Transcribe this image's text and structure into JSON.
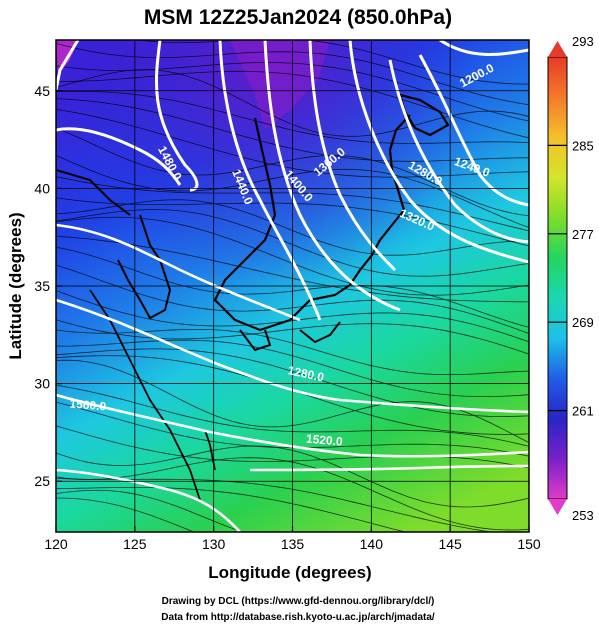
{
  "chart_data": {
    "type": "heatmap",
    "title": "MSM 12Z25Jan2024 (850.0hPa)",
    "xlabel": "Longitude (degrees)",
    "ylabel": "Latitude  (degrees)",
    "xlim": [
      120,
      150
    ],
    "ylim": [
      22.4,
      47.6
    ],
    "xticks": [
      120,
      125,
      130,
      135,
      140,
      145,
      150
    ],
    "yticks": [
      25,
      30,
      35,
      40,
      45
    ],
    "grid": true,
    "colorbar": {
      "min": 253,
      "max": 293,
      "ticks": [
        253,
        261,
        269,
        277,
        285,
        293
      ],
      "colors": [
        "#e03cc8",
        "#7a20c8",
        "#2826c8",
        "#1f5ee6",
        "#1ec0e8",
        "#1ad8b0",
        "#24d460",
        "#7edc2a",
        "#d4e42a",
        "#f4c02a",
        "#f47a2a",
        "#e83a2a"
      ]
    },
    "contours": [
      {
        "label": "1480.0",
        "lon": 127.0,
        "lat": 41.2,
        "rot": 62
      },
      {
        "label": "1440.0",
        "lon": 131.6,
        "lat": 40.0,
        "rot": 68
      },
      {
        "label": "1400.0",
        "lon": 135.2,
        "lat": 40.0,
        "rot": 50
      },
      {
        "label": "1360.0",
        "lon": 137.5,
        "lat": 41.2,
        "rot": -40
      },
      {
        "label": "1320.0",
        "lon": 142.8,
        "lat": 38.2,
        "rot": 24
      },
      {
        "label": "1280.0",
        "lon": 143.3,
        "lat": 40.6,
        "rot": 30
      },
      {
        "label": "1240.0",
        "lon": 146.3,
        "lat": 40.9,
        "rot": 20
      },
      {
        "label": "1200.0",
        "lon": 146.8,
        "lat": 45.6,
        "rot": -28
      },
      {
        "label": "1280.0",
        "lon": 135.8,
        "lat": 30.3,
        "rot": 12
      },
      {
        "label": "1520.0",
        "lon": 137.0,
        "lat": 26.9,
        "rot": 5
      },
      {
        "label": "1560.0",
        "lon": 122.0,
        "lat": 28.7,
        "rot": 5
      }
    ]
  },
  "footer": {
    "line1": "Drawing by DCL (https://www.gfd-dennou.org/library/dcl/)",
    "line2": "Data from http://database.rish.kyoto-u.ac.jp/arch/jmadata/"
  }
}
